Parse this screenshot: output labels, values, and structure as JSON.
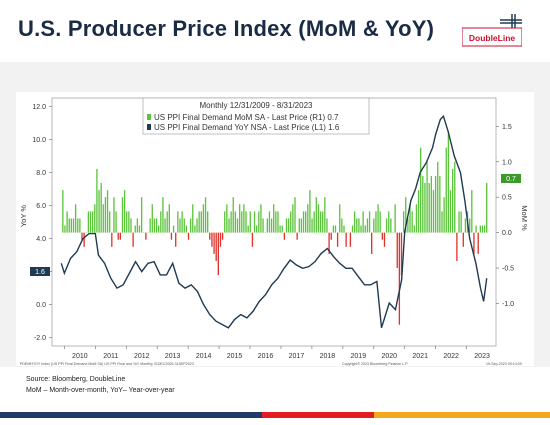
{
  "header": {
    "title": "U.S. Producer Price Index (MoM & YoY)",
    "logo_text": "DoubleLine"
  },
  "chart_data": {
    "type": "bar+line",
    "legend": {
      "heading": "Monthly 12/31/2009 - 8/31/2023",
      "mom_label": "US PPI Final Demand MoM SA - Last Price (R1) 0.7",
      "yoy_label": "US PPI Final Demand YoY NSA - Last Price (L1) 1.6",
      "placement": "top-center"
    },
    "left_axis": {
      "label": "YoY %",
      "range": [
        -2.5,
        12.5
      ],
      "ticks": [
        "-2.0",
        "0.0",
        "2.0",
        "4.0",
        "6.0",
        "8.0",
        "10.0",
        "12.0"
      ]
    },
    "right_axis": {
      "label": "MoM %",
      "range": [
        -1.6,
        1.9
      ],
      "ticks": [
        "-1.0",
        "-0.5",
        "0.0",
        "0.5",
        "1.0",
        "1.5"
      ]
    },
    "x_axis": {
      "ticks": [
        "2010",
        "2011",
        "2012",
        "2013",
        "2014",
        "2015",
        "2016",
        "2017",
        "2018",
        "2019",
        "2020",
        "2021",
        "2022",
        "2023"
      ]
    },
    "last_values": {
      "mom": "0.7",
      "yoy": "1.6"
    },
    "colors": {
      "positive_bar": "#5cc33c",
      "negative_bar": "#e0312a",
      "yoy_line": "#1f3a52",
      "last_tag": "#1f3a52"
    },
    "yoy_series": {
      "x": [
        2009.9,
        2010.0,
        2010.2,
        2010.4,
        2010.6,
        2010.8,
        2011.0,
        2011.1,
        2011.3,
        2011.5,
        2011.7,
        2011.9,
        2012.1,
        2012.3,
        2012.5,
        2012.7,
        2012.9,
        2013.1,
        2013.3,
        2013.5,
        2013.7,
        2013.9,
        2014.1,
        2014.3,
        2014.5,
        2014.7,
        2014.9,
        2015.1,
        2015.3,
        2015.5,
        2015.7,
        2015.9,
        2016.1,
        2016.3,
        2016.5,
        2016.7,
        2016.9,
        2017.1,
        2017.3,
        2017.5,
        2017.7,
        2017.9,
        2018.1,
        2018.3,
        2018.5,
        2018.7,
        2018.9,
        2019.1,
        2019.3,
        2019.5,
        2019.7,
        2019.9,
        2020.1,
        2020.25,
        2020.35,
        2020.5,
        2020.7,
        2020.9,
        2021.0,
        2021.2,
        2021.35,
        2021.5,
        2021.7,
        2021.9,
        2022.0,
        2022.15,
        2022.25,
        2022.4,
        2022.6,
        2022.8,
        2022.95,
        2023.1,
        2023.3,
        2023.45,
        2023.55,
        2023.65
      ],
      "y": [
        2.5,
        1.9,
        2.8,
        3.2,
        4.0,
        4.3,
        4.3,
        3.0,
        2.5,
        1.6,
        1.0,
        1.2,
        1.9,
        2.6,
        2.0,
        2.5,
        2.6,
        1.8,
        1.8,
        2.5,
        1.3,
        1.0,
        1.2,
        0.8,
        0.0,
        -0.6,
        -1.0,
        -1.2,
        -1.4,
        -0.9,
        -0.6,
        -0.8,
        -0.4,
        0.2,
        0.6,
        1.2,
        1.6,
        2.2,
        2.7,
        2.4,
        2.2,
        2.3,
        2.6,
        3.1,
        3.4,
        2.9,
        2.5,
        2.2,
        2.2,
        1.7,
        1.2,
        1.2,
        1.4,
        -1.4,
        -0.8,
        0.1,
        -0.3,
        1.5,
        4.4,
        6.3,
        7.0,
        8.0,
        8.6,
        9.5,
        10.3,
        11.2,
        11.4,
        10.5,
        9.0,
        8.0,
        6.2,
        4.0,
        2.5,
        1.0,
        0.2,
        1.6
      ]
    },
    "mom_series": [
      0.6,
      0.1,
      0.3,
      0.2,
      0.2,
      0.2,
      0.4,
      0.2,
      0.2,
      -0.1,
      -0.2,
      0.0,
      0.3,
      0.3,
      0.3,
      0.4,
      0.9,
      0.6,
      0.7,
      0.4,
      0.5,
      0.6,
      0.3,
      -0.2,
      0.5,
      0.3,
      -0.1,
      -0.1,
      0.5,
      0.6,
      0.3,
      0.3,
      0.2,
      -0.2,
      0.1,
      0.2,
      0.1,
      0.5,
      0.0,
      -0.1,
      0.0,
      0.2,
      0.4,
      0.2,
      0.2,
      0.1,
      0.3,
      0.5,
      0.2,
      0.3,
      0.4,
      -0.1,
      0.1,
      -0.2,
      0.3,
      0.2,
      0.3,
      0.2,
      0.1,
      -0.1,
      0.2,
      0.4,
      0.1,
      0.2,
      0.3,
      0.3,
      0.4,
      0.5,
      0.3,
      -0.1,
      -0.2,
      -0.3,
      -0.4,
      -0.6,
      -0.2,
      -0.1,
      0.3,
      0.4,
      0.2,
      0.3,
      0.5,
      0.3,
      0.2,
      0.4,
      0.3,
      0.4,
      0.3,
      0.1,
      0.3,
      -0.2,
      0.3,
      0.1,
      0.3,
      0.4,
      0.2,
      0.0,
      0.2,
      0.3,
      0.2,
      0.4,
      0.3,
      0.3,
      0.1,
      0.1,
      -0.1,
      0.2,
      0.2,
      0.3,
      0.4,
      0.5,
      -0.1,
      0.2,
      0.2,
      0.3,
      0.3,
      0.4,
      0.6,
      0.2,
      0.3,
      0.5,
      0.4,
      0.3,
      0.3,
      0.5,
      0.2,
      -0.3,
      -0.1,
      0.1,
      0.1,
      -0.2,
      0.4,
      0.2,
      0.1,
      -0.2,
      0.0,
      -0.2,
      0.1,
      0.3,
      0.2,
      0.2,
      0.1,
      0.3,
      0.1,
      0.2,
      0.3,
      -0.3,
      0.2,
      0.3,
      0.4,
      0.3,
      -0.1,
      -0.2,
      0.2,
      0.3,
      0.2,
      0.0,
      0.4,
      -0.5,
      -1.3,
      -0.6,
      0.3,
      0.5,
      0.2,
      0.4,
      0.3,
      0.1,
      0.4,
      0.6,
      1.2,
      0.8,
      0.7,
      1.0,
      0.7,
      0.8,
      0.6,
      0.8,
      1.0,
      0.8,
      0.3,
      0.5,
      1.2,
      1.4,
      0.6,
      0.9,
      1.0,
      -0.4,
      0.3,
      0.3,
      -0.2,
      0.2,
      0.3,
      0.2,
      0.6,
      -0.3,
      0.1,
      -0.3,
      0.1,
      0.1,
      0.1,
      0.7
    ]
  },
  "footer": {
    "source": "Source: Bloomberg, DoubleLine",
    "note": "MoM – Month-over-month, YoY– Year-over-year",
    "fine_print_left": "PDEMHTOY Index (US PPI Final Demand MoM SA) US PPI Final and YoY  Monthly 31DEC2009-31SEP2023",
    "fine_print_mid": "Copyright© 2023 Bloomberg Finance L.P.",
    "fine_print_right": "19-Sep-2023 09:14:09",
    "bar_colors": [
      "#1f3a6b",
      "#e31b23",
      "#f2a81d"
    ]
  }
}
